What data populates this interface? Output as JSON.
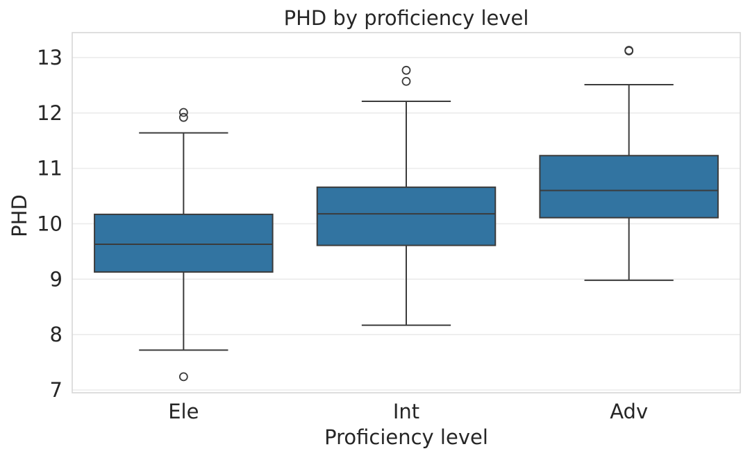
{
  "chart_data": {
    "type": "box",
    "title": "PHD by proficiency level",
    "xlabel": "Proficiency level",
    "ylabel": "PHD",
    "categories": [
      "Ele",
      "Int",
      "Adv"
    ],
    "ylim": [
      6.95,
      13.45
    ],
    "yticks": [
      7,
      8,
      9,
      10,
      11,
      12,
      13
    ],
    "grid": true,
    "box_color": "#3274a1",
    "line_color": "#3b3b3b",
    "boxes": [
      {
        "category": "Ele",
        "whisker_low": 7.72,
        "q1": 9.13,
        "median": 9.63,
        "q3": 10.17,
        "whisker_high": 11.64,
        "outliers": [
          7.24,
          11.92,
          12.01
        ]
      },
      {
        "category": "Int",
        "whisker_low": 8.17,
        "q1": 9.61,
        "median": 10.18,
        "q3": 10.66,
        "whisker_high": 12.21,
        "outliers": [
          12.57,
          12.77
        ]
      },
      {
        "category": "Adv",
        "whisker_low": 8.98,
        "q1": 10.11,
        "median": 10.6,
        "q3": 11.23,
        "whisker_high": 12.51,
        "outliers": [
          13.12,
          13.13
        ]
      }
    ]
  }
}
